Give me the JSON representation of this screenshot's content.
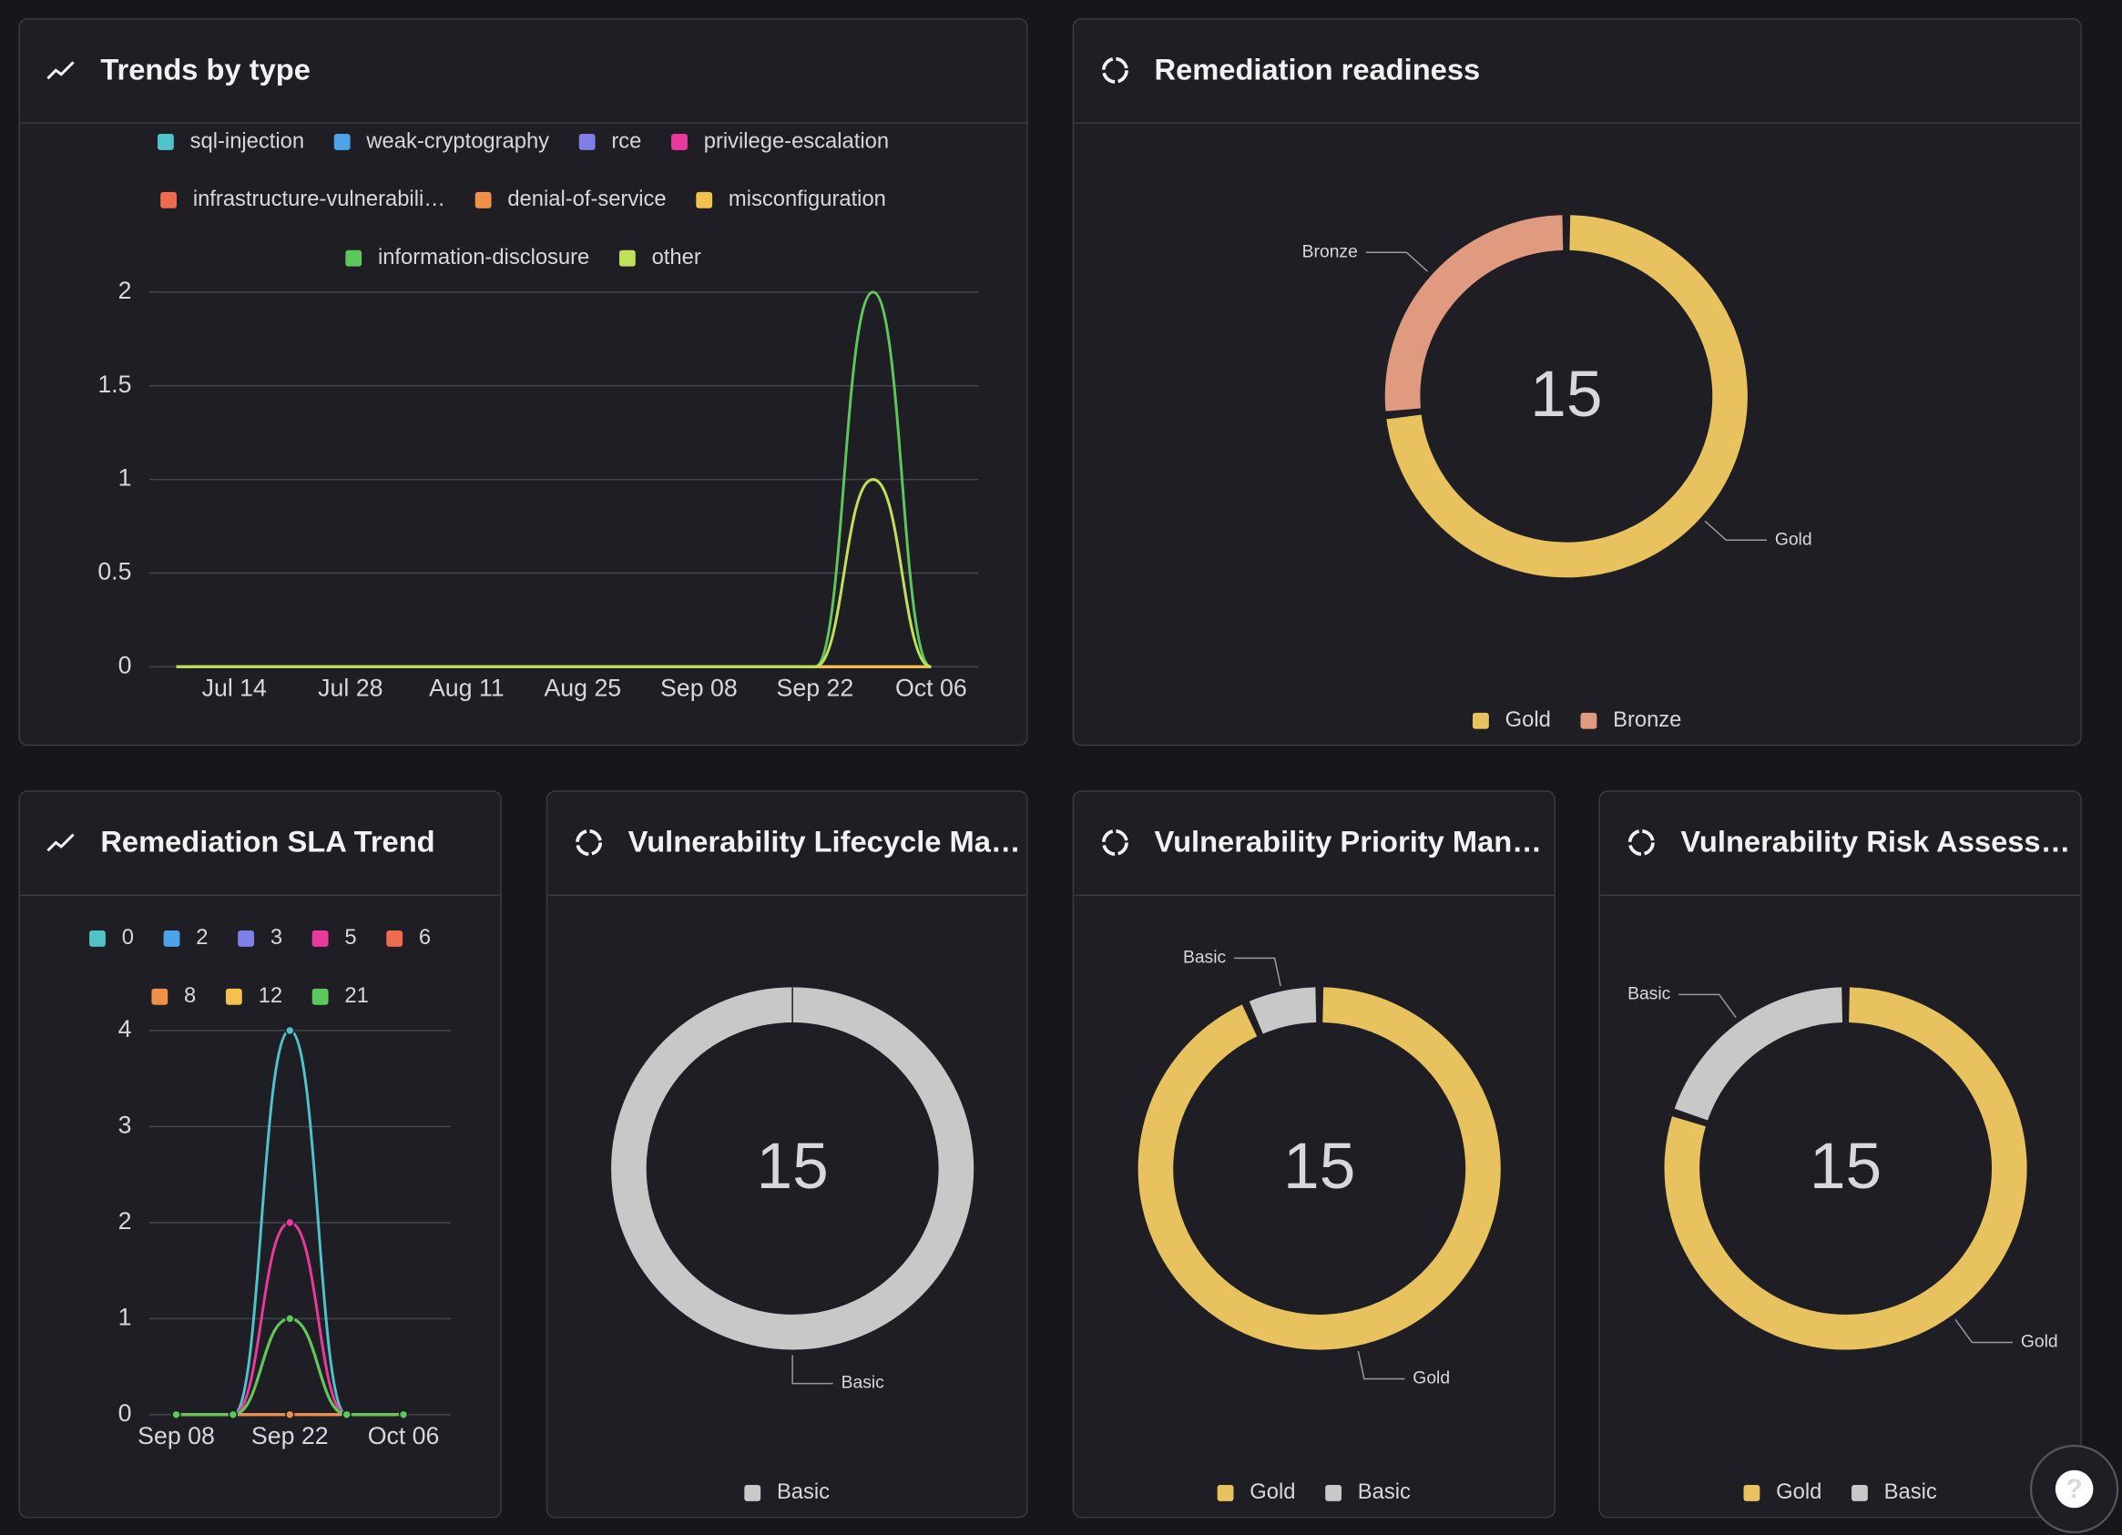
{
  "chart_data": [
    {
      "type": "line",
      "title": "Trends by type",
      "categories": [
        null,
        "Jul 14",
        null,
        "Jul 28",
        null,
        "Aug 11",
        null,
        "Aug 25",
        null,
        "Sep 08",
        null,
        "Sep 22",
        null,
        "Oct 06"
      ],
      "series": [
        {
          "name": "sql-injection",
          "color": "#4fc3c8",
          "values": [
            0,
            0,
            0,
            0,
            0,
            0,
            0,
            0,
            0,
            0,
            0,
            0,
            0,
            0
          ]
        },
        {
          "name": "weak-cryptography",
          "color": "#4da3e8",
          "values": [
            0,
            0,
            0,
            0,
            0,
            0,
            0,
            0,
            0,
            0,
            0,
            0,
            0,
            0
          ]
        },
        {
          "name": "rce",
          "color": "#7f7fe8",
          "values": [
            0,
            0,
            0,
            0,
            0,
            0,
            0,
            0,
            0,
            0,
            0,
            0,
            0,
            0
          ]
        },
        {
          "name": "privilege-escalation",
          "color": "#e83a9c",
          "values": [
            0,
            0,
            0,
            0,
            0,
            0,
            0,
            0,
            0,
            0,
            0,
            0,
            0,
            0
          ]
        },
        {
          "name": "infrastructure-vulnerabili…",
          "color": "#ef6b4f",
          "values": [
            0,
            0,
            0,
            0,
            0,
            0,
            0,
            0,
            0,
            0,
            0,
            0,
            0,
            0
          ]
        },
        {
          "name": "denial-of-service",
          "color": "#f0914a",
          "values": [
            0,
            0,
            0,
            0,
            0,
            0,
            0,
            0,
            0,
            0,
            0,
            0,
            0,
            0
          ]
        },
        {
          "name": "misconfiguration",
          "color": "#f2c14e",
          "values": [
            0,
            0,
            0,
            0,
            0,
            0,
            0,
            0,
            0,
            0,
            0,
            0,
            0,
            0
          ]
        },
        {
          "name": "information-disclosure",
          "color": "#5cc85c",
          "values": [
            0,
            0,
            0,
            0,
            0,
            0,
            0,
            0,
            0,
            0,
            0,
            0,
            2,
            0
          ]
        },
        {
          "name": "other",
          "color": "#c0e05a",
          "values": [
            0,
            0,
            0,
            0,
            0,
            0,
            0,
            0,
            0,
            0,
            0,
            0,
            1,
            0
          ]
        }
      ],
      "ylim": [
        0,
        2
      ],
      "yticks": [
        0,
        0.5,
        1,
        1.5,
        2
      ],
      "grid": true,
      "legend": "top"
    },
    {
      "type": "donut",
      "title": "Remediation readiness",
      "total": 15,
      "categories": [
        "Gold",
        "Bronze"
      ],
      "values": [
        11,
        4
      ],
      "colors": [
        "#e8c25e",
        "#e09a80"
      ],
      "legend": "bottom"
    },
    {
      "type": "line",
      "title": "Remediation SLA Trend",
      "categories": [
        "Sep 08",
        null,
        "Sep 22",
        null,
        "Oct 06"
      ],
      "series": [
        {
          "name": "0",
          "color": "#4fc3c8",
          "values": [
            0,
            0,
            4,
            0,
            0
          ]
        },
        {
          "name": "2",
          "color": "#4da3e8",
          "values": [
            0,
            0,
            0,
            0,
            0
          ]
        },
        {
          "name": "3",
          "color": "#7f7fe8",
          "values": [
            0,
            0,
            0,
            0,
            0
          ]
        },
        {
          "name": "5",
          "color": "#e83a9c",
          "values": [
            0,
            0,
            2,
            0,
            0
          ]
        },
        {
          "name": "6",
          "color": "#ef6b4f",
          "values": [
            0,
            0,
            0,
            0,
            0
          ]
        },
        {
          "name": "8",
          "color": "#f0914a",
          "values": [
            0,
            0,
            0,
            0,
            0
          ]
        },
        {
          "name": "12",
          "color": "#f2c14e",
          "values": [
            0,
            0,
            1,
            0,
            0
          ]
        },
        {
          "name": "21",
          "color": "#5cc85c",
          "values": [
            0,
            0,
            1,
            0,
            0
          ]
        }
      ],
      "ylim": [
        0,
        4
      ],
      "yticks": [
        0,
        1,
        2,
        3,
        4
      ],
      "grid": true,
      "markers": true,
      "legend": "top"
    },
    {
      "type": "donut",
      "title": "Vulnerability Lifecycle Ma…",
      "total": 15,
      "categories": [
        "Basic"
      ],
      "values": [
        15
      ],
      "colors": [
        "#c8c8c8"
      ],
      "legend": "bottom"
    },
    {
      "type": "donut",
      "title": "Vulnerability Priority Man…",
      "total": 15,
      "categories": [
        "Gold",
        "Basic"
      ],
      "values": [
        14,
        1
      ],
      "colors": [
        "#e8c25e",
        "#c8c8c8"
      ],
      "legend": "bottom"
    },
    {
      "type": "donut",
      "title": "Vulnerability Risk Assess…",
      "total": 15,
      "categories": [
        "Gold",
        "Basic"
      ],
      "values": [
        12,
        3
      ],
      "colors": [
        "#e8c25e",
        "#c8c8c8"
      ],
      "legend": "bottom"
    }
  ],
  "help_button": "?"
}
